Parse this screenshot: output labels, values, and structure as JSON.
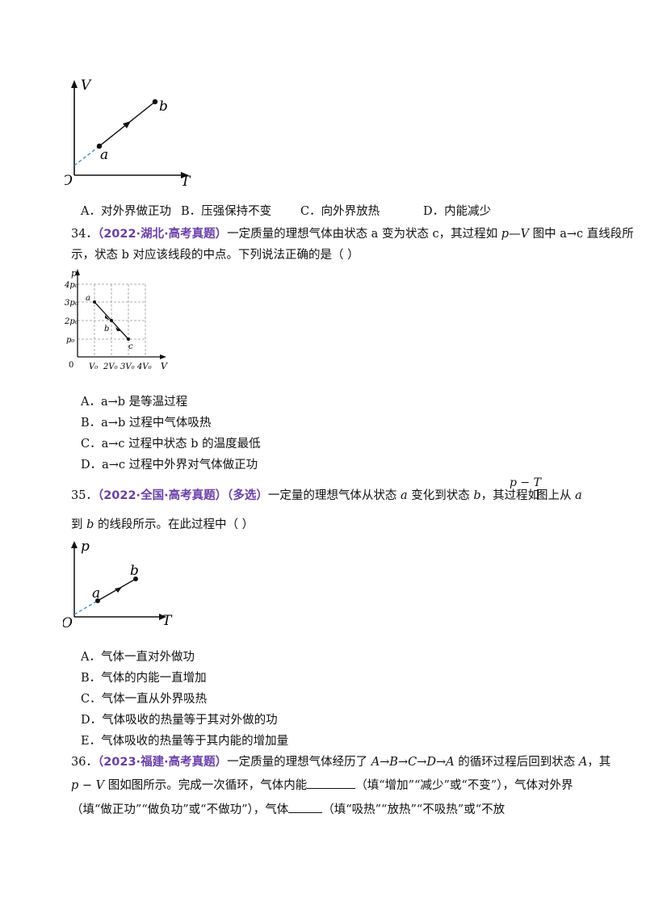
{
  "fig1": {
    "v_label": "V",
    "t_label": "T",
    "o_label": "O",
    "a_label": "a",
    "b_label": "b"
  },
  "q33_options": {
    "A": "A．对外界做正功",
    "B": "B．压强保持不变",
    "C": "C．向外界放热",
    "D": "D．内能减少"
  },
  "q34": {
    "num": "34．",
    "tag": "（2022·湖北·高考真题）",
    "line1_text": "一定质量的理想气体由状态 a 变为状态 c，其过程如 ",
    "line1_pv": "p—V",
    "line1_tail": " 图中 a→c 直线段所",
    "line2": "示，状态 b 对应该线段的中点。下列说法正确的是（    ）",
    "options": [
      "A．a→b 是等温过程",
      "B．a→b 过程中气体吸热",
      "C．a→c 过程中状态 b 的温度最低",
      "D．a→c 过程中外界对气体做正功"
    ]
  },
  "fig2": {
    "p_label": "p",
    "v_label": "V",
    "zero": "0",
    "y_ticks": [
      "4p₀",
      "3p₀",
      "2p₀",
      "p₀"
    ],
    "x_ticks": [
      "V₀",
      "2V₀",
      "3V₀",
      "4V₀"
    ],
    "points": {
      "a": "a",
      "b": "b",
      "c": "c"
    }
  },
  "q35": {
    "num": "35．",
    "tag": "（2022·全国·高考真题）（多选）",
    "line1_text": "一定量的理想气体从状态 ",
    "line1_a": "a",
    "line1_mid": " 变化到状态 ",
    "line1_b": "b",
    "line1_tail": "，其过程如",
    "pt_label": "p − T",
    "line1_end": "图上从 ",
    "line1_end_a": "a",
    "line2_pre": "到 ",
    "line2_b": "b",
    "line2_text": " 的线段所示。在此过程中（        ）",
    "options": [
      "A．气体一直对外做功",
      "B．气体的内能一直增加",
      "C．气体一直从外界吸热",
      "D．气体吸收的热量等于其对外做的功",
      "E．气体吸收的热量等于其内能的增加量"
    ]
  },
  "fig3": {
    "p_label": "p",
    "t_label": "T",
    "o_label": "O",
    "a_label": "a",
    "b_label": "b"
  },
  "q36": {
    "num": "36．",
    "tag": "（2023·福建·高考真题）",
    "line1_text": "一定质量的理想气体经历了 ",
    "cycle": "A→B→C→D→A",
    "line1_mid": " 的循环过程后回到状态 ",
    "state_a": "A",
    "line1_tail": "，其",
    "pv": "p − V",
    "line2_text1": " 图如图所示。完成一次循环，气体内能",
    "line2_text2": "（填“增加”“减少”或“不变”），气体对外界",
    "line3_text1": "（填“做正功”“做负功”或“不做功”），气体",
    "line3_text2": "（填“吸热”“放热”“不吸热”或“不放"
  }
}
